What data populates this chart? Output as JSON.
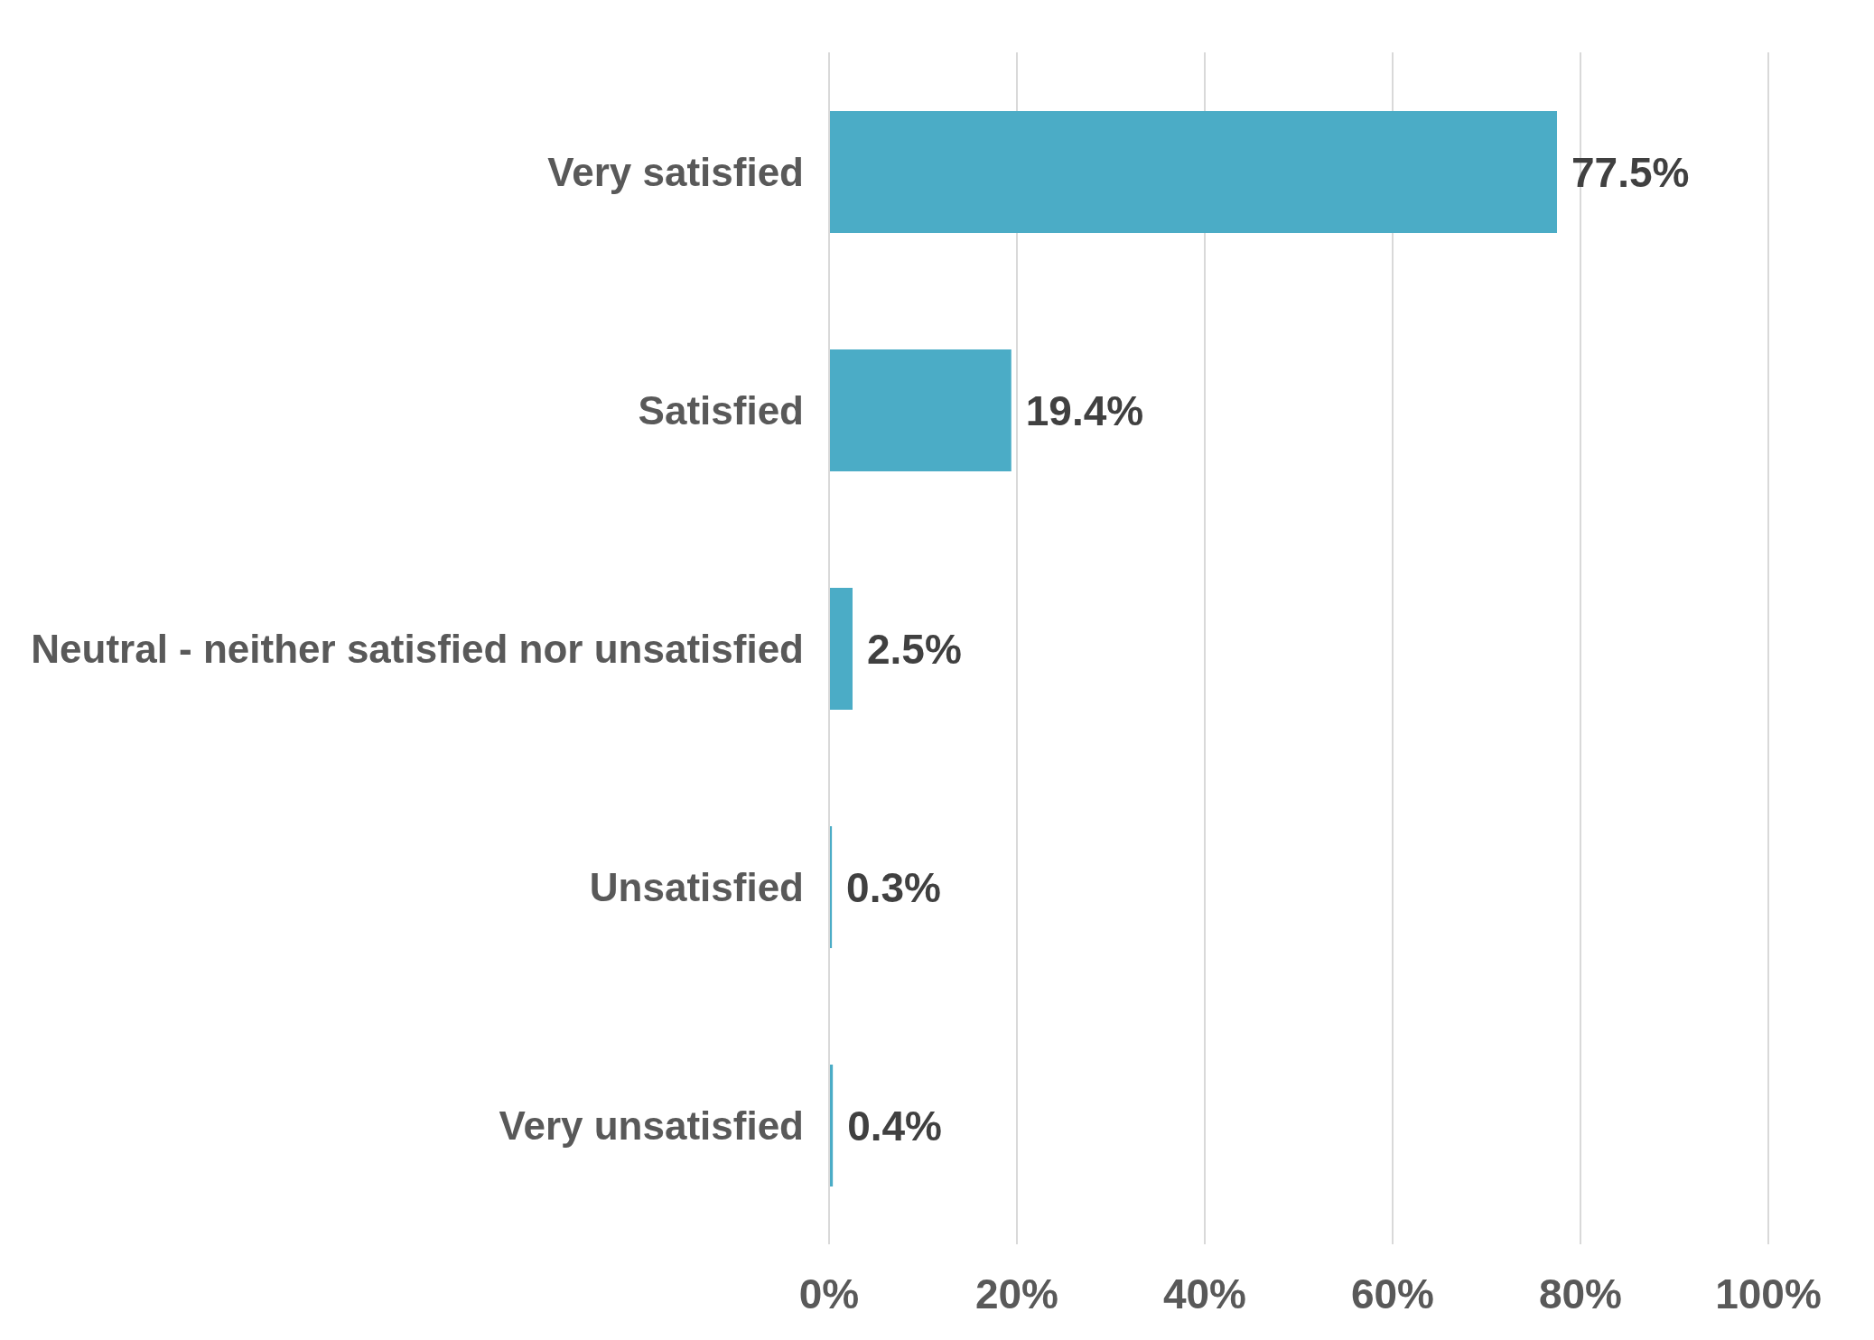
{
  "chart_data": {
    "type": "bar",
    "orientation": "horizontal",
    "categories": [
      "Very satisfied",
      "Satisfied",
      "Neutral - neither satisfied nor unsatisfied",
      "Unsatisfied",
      "Very unsatisfied"
    ],
    "values": [
      77.5,
      19.4,
      2.5,
      0.3,
      0.4
    ],
    "value_labels": [
      "77.5%",
      "19.4%",
      "2.5%",
      "0.3%",
      "0.4%"
    ],
    "color": "#4bacc6",
    "xlim": [
      0,
      100
    ],
    "xticks": [
      {
        "value": 0,
        "label": "0%"
      },
      {
        "value": 20,
        "label": "20%"
      },
      {
        "value": 40,
        "label": "40%"
      },
      {
        "value": 60,
        "label": "60%"
      },
      {
        "value": 80,
        "label": "80%"
      },
      {
        "value": 100,
        "label": "100%"
      }
    ],
    "grid": "x",
    "legend": false
  }
}
